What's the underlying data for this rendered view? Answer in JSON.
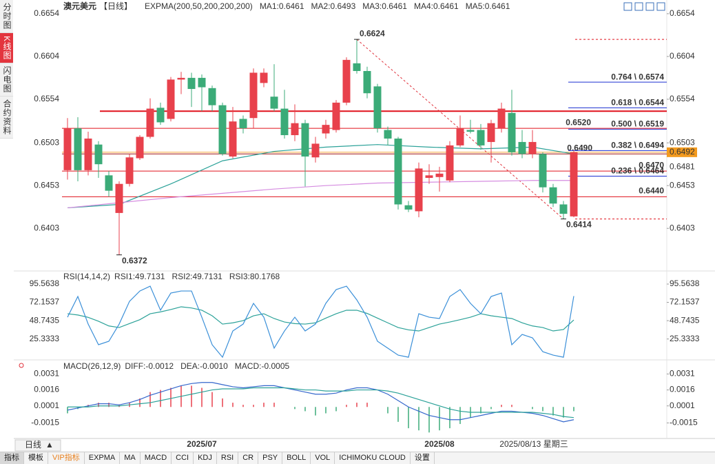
{
  "ui": {
    "sidebar": [
      "分时图",
      "K线图",
      "闪电图",
      "合约资料"
    ],
    "toolbar": {
      "period": "日线",
      "items": [
        "指标",
        "模板",
        "VIP指标",
        "EXPMA",
        "MA",
        "MACD",
        "CCI",
        "KDJ",
        "RSI",
        "CR",
        "PSY",
        "BOLL",
        "VOL",
        "ICHIMOKU CLOUD",
        "设置"
      ]
    },
    "crosshair_date": "2025/08/13 星期三"
  },
  "chart_data": [
    {
      "type": "candlestick",
      "title": "澳元美元",
      "subtitle": "【日线】",
      "legend": [
        {
          "name": "EXPMA(200,50,200,200,200)",
          "color": "#333333"
        },
        {
          "name": "MA1:0.6461",
          "color": "#3a8fd8"
        },
        {
          "name": "MA2:0.6493",
          "color": "#2aa198"
        },
        {
          "name": "MA3:0.6461",
          "color": "#3a8fd8"
        },
        {
          "name": "MA4:0.6461",
          "color": "#f0a030"
        },
        {
          "name": "MA5:0.6461",
          "color": "#e080e0"
        }
      ],
      "categories": [
        null,
        null,
        null,
        null,
        null,
        null,
        null,
        null,
        null,
        null,
        null,
        null,
        null,
        "2025/07",
        null,
        null,
        null,
        null,
        null,
        null,
        null,
        null,
        null,
        null,
        null,
        null,
        null,
        null,
        null,
        null,
        null,
        null,
        null,
        null,
        null,
        null,
        "2025/08",
        null,
        null,
        null,
        null,
        null,
        null,
        null,
        null,
        null,
        null,
        null,
        null,
        null
      ],
      "open": [
        0.6471,
        0.652,
        0.6471,
        0.6501,
        0.6465,
        0.6421,
        0.6455,
        0.6485,
        0.651,
        0.6544,
        0.6531,
        0.6577,
        0.6579,
        0.6579,
        0.6567,
        0.6547,
        0.6487,
        0.6531,
        0.6532,
        0.6573,
        0.6557,
        0.6543,
        0.6512,
        0.6526,
        0.6486,
        0.6514,
        0.6518,
        0.655,
        0.6596,
        0.6587,
        0.6569,
        0.6518,
        0.6508,
        0.643,
        0.6423,
        0.6462,
        0.6463,
        0.6459,
        0.65,
        0.6518,
        0.6518,
        0.6504,
        0.652,
        0.6538,
        0.6504,
        0.649,
        0.649,
        0.6451,
        0.6431,
        0.6417
      ],
      "close": [
        0.652,
        0.6471,
        0.6508,
        0.6478,
        0.6447,
        0.6455,
        0.6486,
        0.651,
        0.6543,
        0.6527,
        0.6577,
        0.6579,
        0.6566,
        0.6568,
        0.6547,
        0.649,
        0.6528,
        0.652,
        0.6585,
        0.6585,
        0.6543,
        0.6512,
        0.6526,
        0.6487,
        0.6502,
        0.6524,
        0.655,
        0.66,
        0.6587,
        0.6561,
        0.652,
        0.6508,
        0.6431,
        0.6425,
        0.6473,
        0.6465,
        0.6467,
        0.65,
        0.652,
        0.6516,
        0.65,
        0.6526,
        0.6543,
        0.6492,
        0.649,
        0.6504,
        0.6451,
        0.6432,
        0.642,
        0.6492
      ],
      "high": [
        0.6532,
        0.6533,
        0.6516,
        0.6505,
        0.647,
        0.6458,
        0.649,
        0.6512,
        0.6555,
        0.655,
        0.658,
        0.6586,
        0.6585,
        0.6583,
        0.657,
        0.655,
        0.6545,
        0.6535,
        0.659,
        0.659,
        0.6595,
        0.6565,
        0.6548,
        0.653,
        0.651,
        0.653,
        0.6553,
        0.6603,
        0.6624,
        0.6592,
        0.6572,
        0.6522,
        0.651,
        0.6435,
        0.648,
        0.6478,
        0.6475,
        0.6505,
        0.6535,
        0.653,
        0.6525,
        0.653,
        0.655,
        0.6565,
        0.6518,
        0.6518,
        0.6492,
        0.6455,
        0.6435,
        0.6494
      ],
      "low": [
        0.646,
        0.6458,
        0.6465,
        0.6462,
        0.644,
        0.6372,
        0.6452,
        0.6483,
        0.6508,
        0.6524,
        0.6528,
        0.656,
        0.6545,
        0.654,
        0.654,
        0.6488,
        0.6485,
        0.6514,
        0.652,
        0.6568,
        0.654,
        0.6508,
        0.6505,
        0.6452,
        0.648,
        0.6508,
        0.6515,
        0.6547,
        0.6584,
        0.6555,
        0.6515,
        0.65,
        0.6425,
        0.6422,
        0.6416,
        0.6455,
        0.6446,
        0.6457,
        0.6498,
        0.6514,
        0.6495,
        0.648,
        0.6515,
        0.6488,
        0.6485,
        0.6485,
        0.6445,
        0.6428,
        0.6414,
        0.6416
      ],
      "up_color": "#e8414c",
      "down_color": "#3bab78",
      "lines": [
        {
          "color": "#2aa198",
          "x": [
            0,
            5,
            10,
            15,
            20,
            25,
            30,
            35,
            40,
            45,
            49
          ],
          "values": [
            0.6427,
            0.6431,
            0.6455,
            0.6482,
            0.6493,
            0.6498,
            0.6501,
            0.6498,
            0.6496,
            0.6498,
            0.649
          ]
        },
        {
          "color": "#d58be0",
          "x": [
            0,
            5,
            10,
            15,
            20,
            25,
            30,
            35,
            40,
            45,
            49
          ],
          "values": [
            0.6427,
            0.6433,
            0.6439,
            0.6444,
            0.6449,
            0.6453,
            0.6456,
            0.6457,
            0.6458,
            0.6459,
            0.6459
          ]
        }
      ],
      "levels": [
        {
          "value": 0.654,
          "color": "#e0101a",
          "bold": true
        },
        {
          "value": 0.652,
          "label": "0.6520",
          "color": "#e0101a"
        },
        {
          "value": 0.649,
          "label": "0.6490",
          "color": "#a01010"
        },
        {
          "value": 0.647,
          "label": "0.6470",
          "color": "#e0101a"
        },
        {
          "value": 0.644,
          "label": "0.6440",
          "color": "#e0101a"
        },
        {
          "value": 0.6624,
          "color": "#e0101a",
          "dashed": true
        },
        {
          "value": 0.6414,
          "color": "#e0101a",
          "dashed": true
        }
      ],
      "fibonacci": [
        {
          "value": 0.6574,
          "label": "0.764 \\ 0.6574"
        },
        {
          "value": 0.6544,
          "label": "0.618 \\ 0.6544"
        },
        {
          "value": 0.6519,
          "label": "0.500 \\ 0.6519"
        },
        {
          "value": 0.6494,
          "label": "0.382 \\ 0.6494"
        },
        {
          "value": 0.6464,
          "label": "0.236 \\ 0.6464"
        }
      ],
      "fib_color": "#1a2fd0",
      "annotations": [
        {
          "value": 0.6624,
          "x": 28,
          "color": "#e0303a"
        },
        {
          "value": 0.6372,
          "x": 5,
          "color": "#3bab78"
        },
        {
          "value": 0.6414,
          "x": 48,
          "color": "#3bab78"
        }
      ],
      "last_price": 0.6492,
      "mark_price": 0.6481,
      "price_color": "#f39a1e",
      "ylim": [
        0.6354,
        0.6666
      ],
      "yticks": [
        0.6654,
        0.6604,
        0.6554,
        0.6503,
        0.6453,
        0.6403
      ]
    },
    {
      "type": "line",
      "title": "RSI(14,14,2)",
      "legend": [
        {
          "name": "RSI1:49.7131",
          "color": "#3a8fd8"
        },
        {
          "name": "RSI2:49.7131",
          "color": "#2aa198"
        },
        {
          "name": "RSI3:80.1768",
          "color": "#3a8fd8"
        }
      ],
      "series": [
        {
          "color": "#2aa198",
          "values": [
            57.6,
            56,
            53,
            48,
            42,
            40,
            45,
            50,
            57.6,
            60,
            63,
            66.5,
            65,
            62.1,
            55,
            44.4,
            46,
            48.8,
            55,
            57.6,
            51.5,
            47,
            45,
            44.4,
            46,
            52,
            57.6,
            62.1,
            62.1,
            58,
            52,
            46,
            40,
            37,
            35.6,
            40,
            44.4,
            47,
            50,
            53.2,
            57.6,
            55,
            53.2,
            51.5,
            46,
            42,
            40,
            35.6,
            37.4,
            49.7
          ]
        },
        {
          "color": "#3a8fd8",
          "values": [
            53.2,
            79.7,
            44.4,
            18,
            22.4,
            44.4,
            73.5,
            86.7,
            92.9,
            62.1,
            84.1,
            86.7,
            86.7,
            53.2,
            18,
            2,
            35.6,
            44.4,
            70.9,
            53.2,
            13.6,
            35.6,
            53.2,
            35.6,
            44.4,
            70.9,
            88.5,
            92.9,
            75.3,
            53.2,
            22.4,
            13.6,
            4.7,
            2,
            57.6,
            53.2,
            51.5,
            79.7,
            88.5,
            70.9,
            57.6,
            79.7,
            84.1,
            18,
            31.2,
            26.8,
            9.1,
            4.7,
            2,
            80.2
          ]
        }
      ],
      "ylim": [
        -1.4,
        108.8
      ],
      "yticks": [
        95.5638,
        72.1537,
        48.7435,
        25.3333
      ]
    },
    {
      "type": "macd",
      "title": "MACD(26,12,9)",
      "legend": [
        {
          "name": "DIFF:-0.0012",
          "color": "#3a8fd8"
        },
        {
          "name": "DEA:-0.0010",
          "color": "#2aa198"
        },
        {
          "name": "MACD:-0.0005",
          "color": "#3a8fd8"
        }
      ],
      "series": [
        {
          "color": "#3366cc",
          "values": [
            -0.0003,
            -0.0001,
            0.0001,
            0.0003,
            0.0003,
            0.0002,
            0.0004,
            0.0007,
            0.0011,
            0.0014,
            0.0017,
            0.002,
            0.0022,
            0.0023,
            0.0023,
            0.0021,
            0.0019,
            0.0018,
            0.0019,
            0.002,
            0.002,
            0.0018,
            0.0016,
            0.0014,
            0.0012,
            0.0012,
            0.0013,
            0.0016,
            0.0018,
            0.0018,
            0.0016,
            0.0012,
            0.0006,
            0,
            -0.0004,
            -0.0008,
            -0.001,
            -0.0012,
            -0.0012,
            -0.001,
            -0.0008,
            -0.0006,
            -0.0004,
            -0.0004,
            -0.0005,
            -0.0006,
            -0.0008,
            -0.0011,
            -0.0014,
            -0.0012
          ]
        },
        {
          "color": "#2aa198",
          "values": [
            0,
            0,
            0,
            0.0001,
            0.0001,
            0.0001,
            0.0002,
            0.0003,
            0.0004,
            0.0006,
            0.0008,
            0.001,
            0.0012,
            0.0014,
            0.0016,
            0.0017,
            0.0017,
            0.0017,
            0.0018,
            0.0018,
            0.0018,
            0.0018,
            0.0017,
            0.0016,
            0.0016,
            0.0015,
            0.0015,
            0.0015,
            0.0016,
            0.0016,
            0.0016,
            0.0015,
            0.0013,
            0.001,
            0.0007,
            0.0004,
            0.0001,
            -0.0002,
            -0.0004,
            -0.0005,
            -0.0005,
            -0.0005,
            -0.0005,
            -0.0005,
            -0.0005,
            -0.0005,
            -0.0006,
            -0.0007,
            -0.0009,
            -0.001
          ]
        }
      ],
      "histogram": {
        "values": [
          -0.0006,
          -0.0002,
          0.0002,
          0.0004,
          0.0004,
          0.0002,
          0.0004,
          0.0008,
          0.0014,
          0.0016,
          0.0018,
          0.002,
          0.002,
          0.0018,
          0.0014,
          0.0008,
          0.0004,
          0.0002,
          0.0002,
          0.0004,
          0.0004,
          0,
          -0.0002,
          -0.0004,
          -0.0008,
          -0.0006,
          -0.0004,
          0.0002,
          0.0004,
          0.0004,
          0,
          -0.0006,
          -0.0014,
          -0.002,
          -0.0022,
          -0.0024,
          -0.0022,
          -0.002,
          -0.0016,
          -0.001,
          -0.0006,
          -0.0002,
          0.0002,
          0.0002,
          0,
          -0.0002,
          -0.0004,
          -0.0008,
          -0.001,
          -0.0004
        ],
        "up_color": "#e8414c",
        "down_color": "#3bab78"
      },
      "ylim": [
        -0.0029,
        0.0041
      ],
      "yticks": [
        0.0031,
        0.0016,
        0.0001,
        -0.0015
      ]
    }
  ]
}
